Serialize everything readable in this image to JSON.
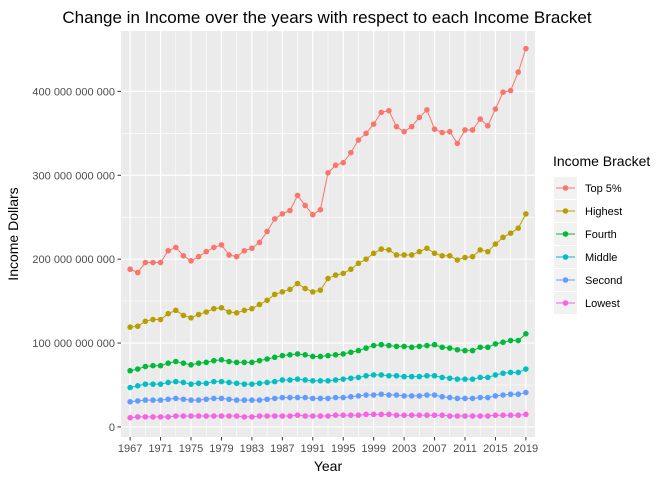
{
  "chart_data": {
    "type": "line",
    "title": "Change in Income over the years with respect to each Income Bracket",
    "xlabel": "Year",
    "ylabel": "Income Dollars",
    "xlim": [
      1965.8,
      2020.2
    ],
    "ylim": [
      -12000000000,
      472000000000
    ],
    "x_ticks": [
      1967,
      1971,
      1975,
      1979,
      1983,
      1987,
      1991,
      1995,
      1999,
      2003,
      2007,
      2011,
      2015,
      2019
    ],
    "x_tick_labels": [
      "1967",
      "1971",
      "1975",
      "1979",
      "1983",
      "1987",
      "1991",
      "1995",
      "1999",
      "2003",
      "2007",
      "2011",
      "2015",
      "2019"
    ],
    "y_ticks": [
      0,
      100000000000,
      200000000000,
      300000000000,
      400000000000
    ],
    "y_tick_labels": [
      "0",
      "100 000 000 000",
      "200 000 000 000",
      "300 000 000 000",
      "400 000 000 000"
    ],
    "grid": true,
    "legend": {
      "title": "Income Bracket",
      "position": "right"
    },
    "x": [
      1967,
      1968,
      1969,
      1970,
      1971,
      1972,
      1973,
      1974,
      1975,
      1976,
      1977,
      1978,
      1979,
      1980,
      1981,
      1982,
      1983,
      1984,
      1985,
      1986,
      1987,
      1988,
      1989,
      1990,
      1991,
      1992,
      1993,
      1994,
      1995,
      1996,
      1997,
      1998,
      1999,
      2000,
      2001,
      2002,
      2003,
      2004,
      2005,
      2006,
      2007,
      2008,
      2009,
      2010,
      2011,
      2012,
      2013,
      2014,
      2015,
      2016,
      2017,
      2018,
      2019
    ],
    "series": [
      {
        "name": "Top 5%",
        "color": "#F8766D",
        "values": [
          188000000000.0,
          184000000000.0,
          196000000000.0,
          196000000000.0,
          196000000000.0,
          210000000000.0,
          214000000000.0,
          204000000000.0,
          198000000000.0,
          203000000000.0,
          209000000000.0,
          214000000000.0,
          217000000000.0,
          205000000000.0,
          203000000000.0,
          210000000000.0,
          213000000000.0,
          220000000000.0,
          233000000000.0,
          248000000000.0,
          254000000000.0,
          258000000000.0,
          276000000000.0,
          264000000000.0,
          253000000000.0,
          259000000000.0,
          303000000000.0,
          312000000000.0,
          315000000000.0,
          327000000000.0,
          342000000000.0,
          350000000000.0,
          361000000000.0,
          375000000000.0,
          377000000000.0,
          358000000000.0,
          352000000000.0,
          358000000000.0,
          369000000000.0,
          378000000000.0,
          355000000000.0,
          351000000000.0,
          352000000000.0,
          338000000000.0,
          354000000000.0,
          354000000000.0,
          367000000000.0,
          359000000000.0,
          379000000000.0,
          399000000000.0,
          401000000000.0,
          423000000000.0,
          451000000000.0
        ]
      },
      {
        "name": "Highest",
        "color": "#B79F00",
        "values": [
          119000000000.0,
          120000000000.0,
          126000000000.0,
          128000000000.0,
          128000000000.0,
          135000000000.0,
          139000000000.0,
          133000000000.0,
          130000000000.0,
          134000000000.0,
          137000000000.0,
          141000000000.0,
          142000000000.0,
          137000000000.0,
          136000000000.0,
          139000000000.0,
          141000000000.0,
          146000000000.0,
          151000000000.0,
          158000000000.0,
          161000000000.0,
          164000000000.0,
          171000000000.0,
          165000000000.0,
          161000000000.0,
          163000000000.0,
          177000000000.0,
          181000000000.0,
          183000000000.0,
          188000000000.0,
          195000000000.0,
          200000000000.0,
          207000000000.0,
          212000000000.0,
          211000000000.0,
          205000000000.0,
          205000000000.0,
          205000000000.0,
          209000000000.0,
          213000000000.0,
          207000000000.0,
          204000000000.0,
          204000000000.0,
          199000000000.0,
          202000000000.0,
          203000000000.0,
          211000000000.0,
          209000000000.0,
          218000000000.0,
          226000000000.0,
          231000000000.0,
          237000000000.0,
          254000000000.0
        ]
      },
      {
        "name": "Fourth",
        "color": "#00BA38",
        "values": [
          67000000000.0,
          69000000000.0,
          72000000000.0,
          73000000000.0,
          73000000000.0,
          76000000000.0,
          78000000000.0,
          76000000000.0,
          74000000000.0,
          76000000000.0,
          77000000000.0,
          79000000000.0,
          80000000000.0,
          78000000000.0,
          77000000000.0,
          77000000000.0,
          77000000000.0,
          79000000000.0,
          81000000000.0,
          83000000000.0,
          85000000000.0,
          86000000000.0,
          87000000000.0,
          86000000000.0,
          84000000000.0,
          84000000000.0,
          85000000000.0,
          86000000000.0,
          87000000000.0,
          89000000000.0,
          91000000000.0,
          94000000000.0,
          97000000000.0,
          98000000000.0,
          97000000000.0,
          96000000000.0,
          96000000000.0,
          95000000000.0,
          96000000000.0,
          97000000000.0,
          98000000000.0,
          95000000000.0,
          94000000000.0,
          92000000000.0,
          91000000000.0,
          91000000000.0,
          95000000000.0,
          95000000000.0,
          99000000000.0,
          101000000000.0,
          103000000000.0,
          103000000000.0,
          111000000000.0
        ]
      },
      {
        "name": "Middle",
        "color": "#00BFC4",
        "values": [
          47000000000.0,
          49000000000.0,
          51000000000.0,
          51000000000.0,
          51000000000.0,
          53000000000.0,
          54000000000.0,
          53000000000.0,
          51000000000.0,
          52000000000.0,
          52000000000.0,
          54000000000.0,
          54000000000.0,
          53000000000.0,
          52000000000.0,
          51000000000.0,
          51000000000.0,
          52000000000.0,
          53000000000.0,
          54000000000.0,
          56000000000.0,
          56000000000.0,
          57000000000.0,
          56000000000.0,
          55000000000.0,
          55000000000.0,
          55000000000.0,
          56000000000.0,
          57000000000.0,
          58000000000.0,
          59000000000.0,
          61000000000.0,
          62000000000.0,
          62000000000.0,
          61000000000.0,
          61000000000.0,
          60000000000.0,
          60000000000.0,
          60000000000.0,
          61000000000.0,
          61000000000.0,
          59000000000.0,
          58000000000.0,
          57000000000.0,
          57000000000.0,
          57000000000.0,
          59000000000.0,
          59000000000.0,
          62000000000.0,
          64000000000.0,
          65000000000.0,
          65000000000.0,
          69000000000.0
        ]
      },
      {
        "name": "Second",
        "color": "#619CFF",
        "values": [
          30000000000.0,
          31000000000.0,
          32000000000.0,
          32000000000.0,
          32000000000.0,
          33000000000.0,
          34000000000.0,
          33000000000.0,
          32000000000.0,
          32000000000.0,
          33000000000.0,
          34000000000.0,
          34000000000.0,
          33000000000.0,
          32000000000.0,
          32000000000.0,
          32000000000.0,
          32000000000.0,
          33000000000.0,
          34000000000.0,
          35000000000.0,
          35000000000.0,
          35000000000.0,
          35000000000.0,
          34000000000.0,
          34000000000.0,
          34000000000.0,
          35000000000.0,
          35000000000.0,
          36000000000.0,
          37000000000.0,
          38000000000.0,
          38000000000.0,
          39000000000.0,
          38000000000.0,
          38000000000.0,
          37000000000.0,
          37000000000.0,
          37000000000.0,
          38000000000.0,
          38000000000.0,
          36000000000.0,
          35000000000.0,
          34000000000.0,
          34000000000.0,
          34000000000.0,
          35000000000.0,
          35000000000.0,
          37000000000.0,
          38000000000.0,
          39000000000.0,
          39000000000.0,
          41000000000.0
        ]
      },
      {
        "name": "Lowest",
        "color": "#F564E3",
        "values": [
          11000000000.0,
          12000000000.0,
          12000000000.0,
          12000000000.0,
          12000000000.0,
          12000000000.0,
          13000000000.0,
          13000000000.0,
          13000000000.0,
          13000000000.0,
          13000000000.0,
          13000000000.0,
          13000000000.0,
          13000000000.0,
          13000000000.0,
          12000000000.0,
          12000000000.0,
          13000000000.0,
          13000000000.0,
          13000000000.0,
          13000000000.0,
          13000000000.0,
          14000000000.0,
          13000000000.0,
          13000000000.0,
          13000000000.0,
          13000000000.0,
          14000000000.0,
          14000000000.0,
          14000000000.0,
          14000000000.0,
          15000000000.0,
          15000000000.0,
          15000000000.0,
          15000000000.0,
          14000000000.0,
          14000000000.0,
          14000000000.0,
          14000000000.0,
          14000000000.0,
          14000000000.0,
          14000000000.0,
          13000000000.0,
          13000000000.0,
          13000000000.0,
          13000000000.0,
          13000000000.0,
          13000000000.0,
          14000000000.0,
          14000000000.0,
          14000000000.0,
          14000000000.0,
          15000000000.0
        ]
      }
    ]
  }
}
